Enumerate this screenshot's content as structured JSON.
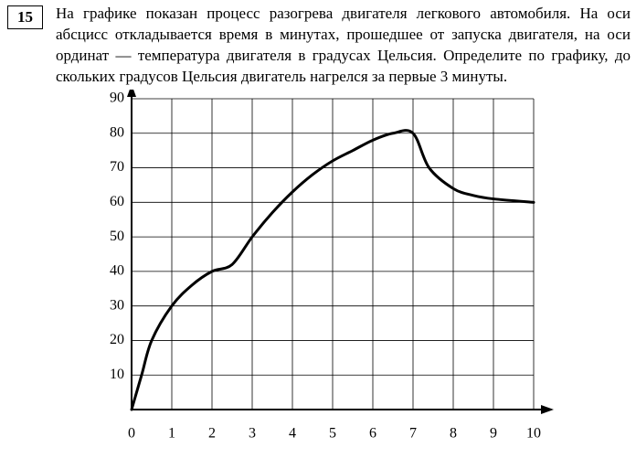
{
  "question": {
    "number": "15",
    "text": "На графике показан процесс разогрева двигателя легкового автомобиля. На оси абсцисс откладывается время в минутах, прошедшее от запуска двигателя, на оси ординат — температура двигателя в градусах Цельсия. Определите по графику, до скольких градусов Цельсия двигатель нагрелся за первые 3 минуты."
  },
  "chart": {
    "type": "line",
    "background_color": "#ffffff",
    "grid_color": "#000000",
    "grid_stroke_width": 0.8,
    "axis_color": "#000000",
    "axis_stroke_width": 2,
    "curve_color": "#000000",
    "curve_stroke_width": 3,
    "xlim": [
      0,
      10
    ],
    "ylim": [
      0,
      90
    ],
    "xtick_step": 1,
    "ytick_step": 10,
    "xtick_labels": [
      "0",
      "1",
      "2",
      "3",
      "4",
      "5",
      "6",
      "7",
      "8",
      "9",
      "10"
    ],
    "ytick_labels": [
      "10",
      "20",
      "30",
      "40",
      "50",
      "60",
      "70",
      "80",
      "90"
    ],
    "tick_fontsize": 16,
    "series": [
      {
        "x": 0,
        "y": 0
      },
      {
        "x": 0.25,
        "y": 10
      },
      {
        "x": 0.5,
        "y": 20
      },
      {
        "x": 1,
        "y": 30
      },
      {
        "x": 1.5,
        "y": 36
      },
      {
        "x": 2,
        "y": 40
      },
      {
        "x": 2.5,
        "y": 42
      },
      {
        "x": 3,
        "y": 50
      },
      {
        "x": 3.5,
        "y": 57
      },
      {
        "x": 4,
        "y": 63
      },
      {
        "x": 4.5,
        "y": 68
      },
      {
        "x": 5,
        "y": 72
      },
      {
        "x": 5.5,
        "y": 75
      },
      {
        "x": 6,
        "y": 78
      },
      {
        "x": 6.5,
        "y": 80
      },
      {
        "x": 7,
        "y": 80
      },
      {
        "x": 7.4,
        "y": 70
      },
      {
        "x": 8,
        "y": 64
      },
      {
        "x": 8.5,
        "y": 62
      },
      {
        "x": 9,
        "y": 61
      },
      {
        "x": 10,
        "y": 60
      }
    ]
  }
}
